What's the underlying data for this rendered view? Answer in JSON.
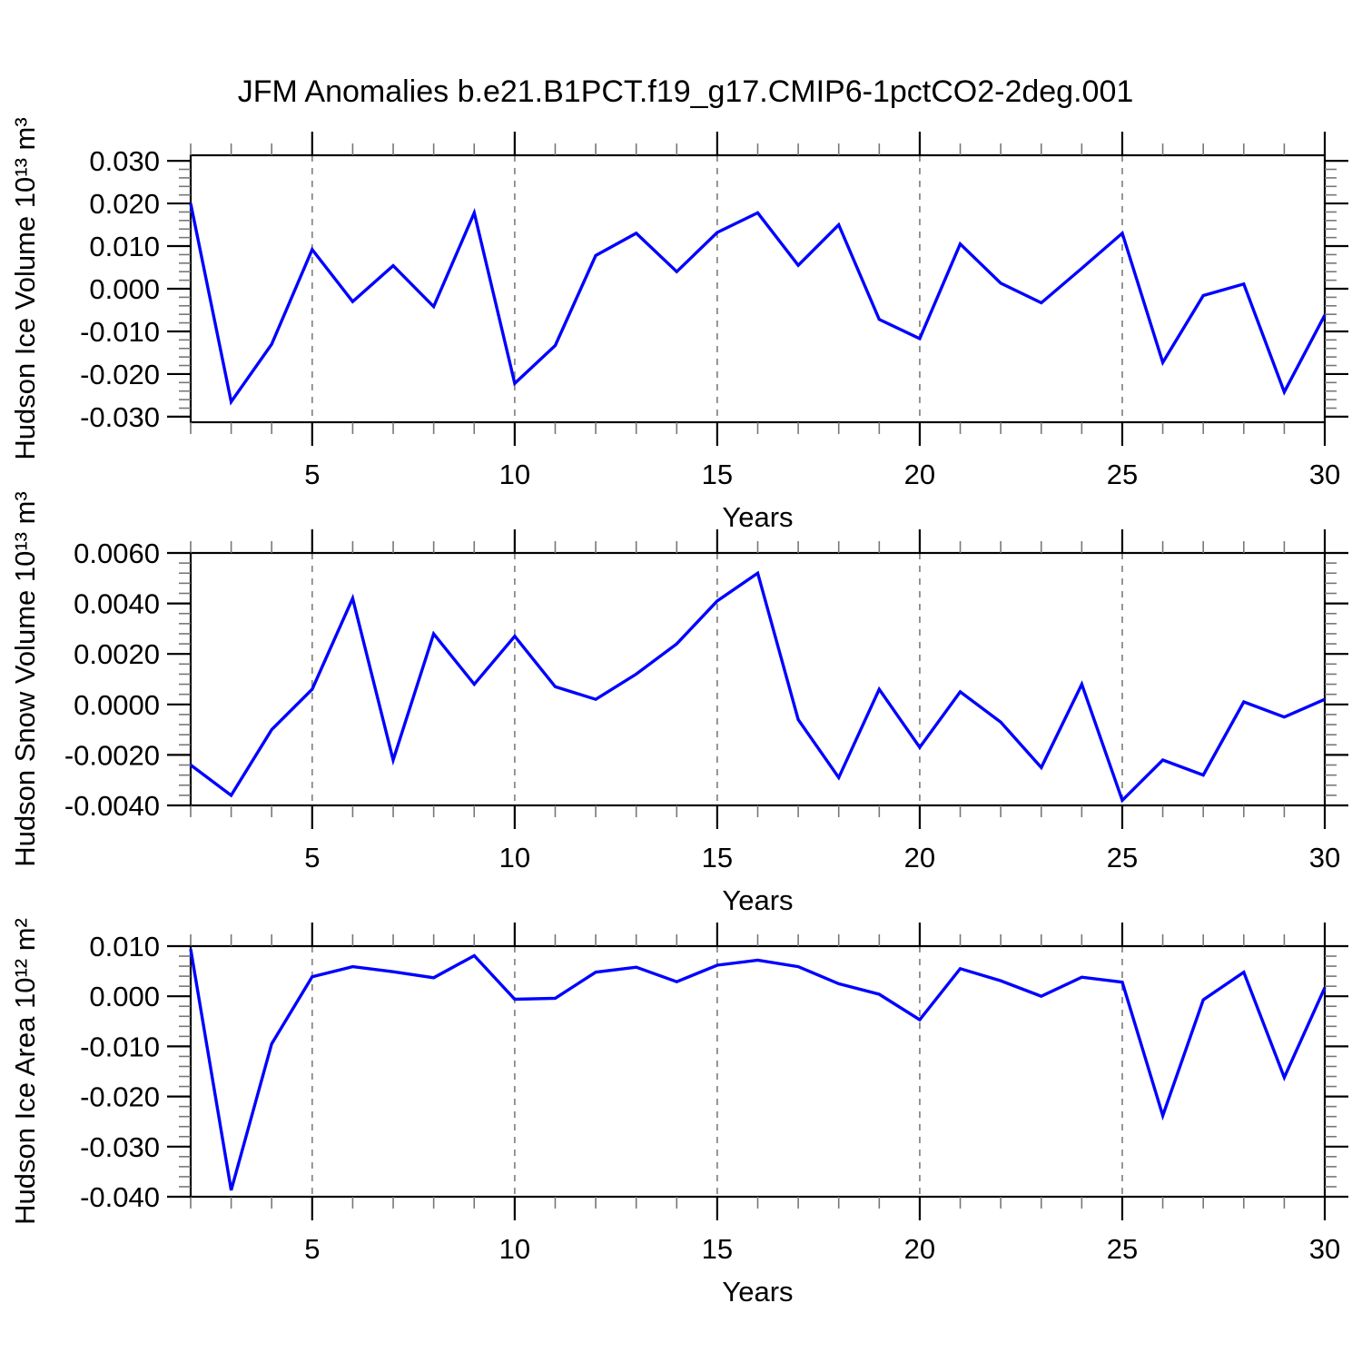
{
  "title": "JFM Anomalies b.e21.B1PCT.f19_g17.CMIP6-1pctCO2-2deg.001",
  "colors": {
    "line": "#0000ff",
    "grid": "#8a8a8a",
    "axis": "#000000",
    "minor_tick": "#777777",
    "text": "#000000",
    "background": "#ffffff"
  },
  "chart_data": [
    {
      "type": "line",
      "name": "hudson-ice-volume",
      "ylabel": "Hudson Ice Volume 10¹³ m³",
      "xlabel": "Years",
      "legend": "none",
      "grid": "vertical-dashed",
      "xlim": [
        2,
        30
      ],
      "xticks": [
        5,
        10,
        15,
        20,
        25,
        30
      ],
      "x_minor_step": 1,
      "grid_x": [
        5,
        10,
        15,
        20,
        25
      ],
      "ylim": [
        -0.0313,
        0.0313
      ],
      "ytick_values": [
        0.03,
        0.02,
        0.01,
        0.0,
        -0.01,
        -0.02,
        -0.03
      ],
      "ytick_labels": [
        "0.030",
        "0.020",
        "0.010",
        "0.000",
        "-0.010",
        "-0.020",
        "-0.030"
      ],
      "y_minor_step": 0.002,
      "years": [
        2,
        3,
        4,
        5,
        6,
        7,
        8,
        9,
        10,
        11,
        12,
        13,
        14,
        15,
        16,
        17,
        18,
        19,
        20,
        21,
        22,
        23,
        24,
        25,
        26,
        27,
        28,
        29,
        30
      ],
      "values": [
        0.02,
        -0.0265,
        -0.013,
        0.0092,
        -0.003,
        0.0054,
        -0.0042,
        0.0178,
        -0.0222,
        -0.0133,
        0.0078,
        0.013,
        0.004,
        0.0132,
        0.0178,
        0.0055,
        0.015,
        -0.0072,
        -0.0117,
        0.0105,
        0.0013,
        -0.0033,
        0.0048,
        0.013,
        -0.0173,
        -0.0016,
        0.0011,
        -0.0242,
        -0.0062
      ]
    },
    {
      "type": "line",
      "name": "hudson-snow-volume",
      "ylabel": "Hudson Snow Volume 10¹³ m³",
      "xlabel": "Years",
      "legend": "none",
      "grid": "vertical-dashed",
      "xlim": [
        2,
        30
      ],
      "xticks": [
        5,
        10,
        15,
        20,
        25,
        30
      ],
      "x_minor_step": 1,
      "grid_x": [
        5,
        10,
        15,
        20,
        25
      ],
      "ylim": [
        -0.004,
        0.006
      ],
      "ytick_values": [
        0.006,
        0.004,
        0.002,
        0.0,
        -0.002,
        -0.004
      ],
      "ytick_labels": [
        "0.0060",
        "0.0040",
        "0.0020",
        "0.0000",
        "-0.0020",
        "-0.0040"
      ],
      "y_minor_step": 0.0004,
      "years": [
        2,
        3,
        4,
        5,
        6,
        7,
        8,
        9,
        10,
        11,
        12,
        13,
        14,
        15,
        16,
        17,
        18,
        19,
        20,
        21,
        22,
        23,
        24,
        25,
        26,
        27,
        28,
        29,
        30
      ],
      "values": [
        -0.0024,
        -0.0036,
        -0.001,
        0.0006,
        0.0042,
        -0.0022,
        0.0028,
        0.0008,
        0.0027,
        0.0007,
        0.0002,
        0.0012,
        0.0024,
        0.0041,
        0.0052,
        -0.0006,
        -0.0029,
        0.0006,
        -0.0017,
        0.0005,
        -0.0007,
        -0.0025,
        0.0008,
        -0.0038,
        -0.0022,
        -0.0028,
        0.0001,
        -0.0005,
        0.0002
      ]
    },
    {
      "type": "line",
      "name": "hudson-ice-area",
      "ylabel": "Hudson Ice Area 10¹² m²",
      "xlabel": "Years",
      "legend": "none",
      "grid": "vertical-dashed",
      "xlim": [
        2,
        30
      ],
      "xticks": [
        5,
        10,
        15,
        20,
        25,
        30
      ],
      "x_minor_step": 1,
      "grid_x": [
        5,
        10,
        15,
        20,
        25
      ],
      "ylim": [
        -0.04,
        0.01
      ],
      "ytick_values": [
        0.01,
        0.0,
        -0.01,
        -0.02,
        -0.03,
        -0.04
      ],
      "ytick_labels": [
        "0.010",
        "0.000",
        "-0.010",
        "-0.020",
        "-0.030",
        "-0.040"
      ],
      "y_minor_step": 0.002,
      "years": [
        2,
        3,
        4,
        5,
        6,
        7,
        8,
        9,
        10,
        11,
        12,
        13,
        14,
        15,
        16,
        17,
        18,
        19,
        20,
        21,
        22,
        23,
        24,
        25,
        26,
        27,
        28,
        29,
        30
      ],
      "values": [
        0.0094,
        -0.0387,
        -0.0095,
        0.0039,
        0.0059,
        0.0049,
        0.0037,
        0.0081,
        -0.0006,
        -0.0004,
        0.0048,
        0.0058,
        0.0029,
        0.0062,
        0.0072,
        0.0059,
        0.0025,
        0.0004,
        -0.0047,
        0.0055,
        0.0031,
        0.0,
        0.0038,
        0.0028,
        -0.0238,
        -0.0007,
        0.0048,
        -0.0162,
        0.0017
      ]
    }
  ]
}
